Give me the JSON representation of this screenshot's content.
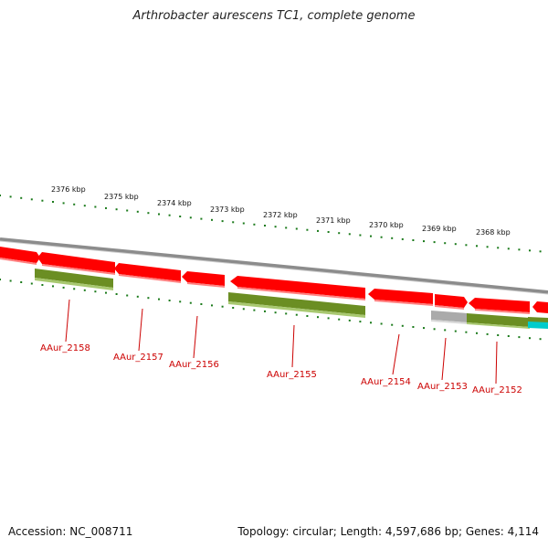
{
  "title": "Arthrobacter aurescens TC1, complete genome",
  "footer": {
    "accession": "Accession: NC_008711",
    "topology": "Topology: circular; Length: 4,597,686 bp; Genes: 4,114"
  },
  "colors": {
    "backbone": "#8c8c8c",
    "forward_gene": "#ff0000",
    "reverse_cds": "#6b8e23",
    "rna": "#aaaaaa",
    "cyan_feature": "#00cccc",
    "tick": "#1a7a1a",
    "label": "#cc0000"
  },
  "scale_ticks": [
    {
      "kbp": 2376,
      "label": "2376 kbp"
    },
    {
      "kbp": 2375,
      "label": "2375 kbp"
    },
    {
      "kbp": 2374,
      "label": "2374 kbp"
    },
    {
      "kbp": 2373,
      "label": "2373 kbp"
    },
    {
      "kbp": 2372,
      "label": "2372 kbp"
    },
    {
      "kbp": 2371,
      "label": "2371 kbp"
    },
    {
      "kbp": 2370,
      "label": "2370 kbp"
    },
    {
      "kbp": 2369,
      "label": "2369 kbp"
    },
    {
      "kbp": 2368,
      "label": "2368 kbp"
    }
  ],
  "gene_labels": [
    "AAur_2158",
    "AAur_2157",
    "AAur_2156",
    "AAur_2155",
    "AAur_2154",
    "AAur_2153",
    "AAur_2152"
  ]
}
